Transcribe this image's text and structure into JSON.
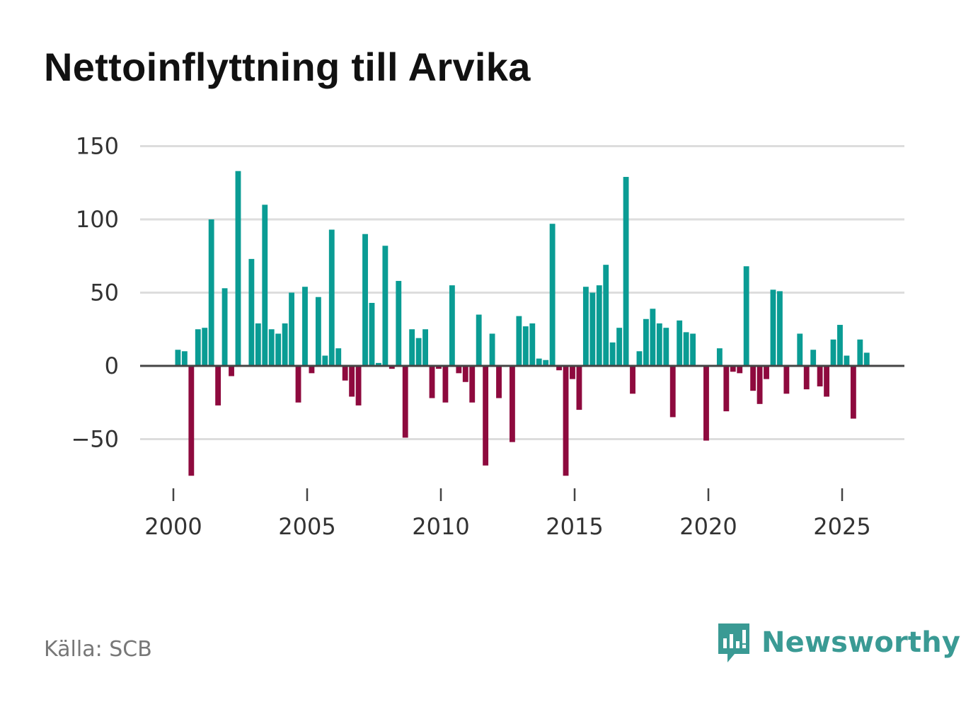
{
  "title": "Nettoinflyttning till Arvika",
  "source": "Källa: SCB",
  "brand": "Newsworthy",
  "colors": {
    "positive": "#0a9c94",
    "negative": "#8e0a3e",
    "grid": "#dddddd",
    "zero": "#444444",
    "brand": "#3a9a94"
  },
  "chart_data": {
    "type": "bar",
    "title": "Nettoinflyttning till Arvika",
    "xlabel": "",
    "ylabel": "",
    "ylim": [
      -75,
      150
    ],
    "xlim": [
      1999.6,
      2027.3
    ],
    "yticks": [
      150,
      100,
      50,
      0,
      -50
    ],
    "ytick_labels": [
      "150",
      "100",
      "50",
      "0",
      "−50"
    ],
    "xticks": [
      2000,
      2005,
      2010,
      2015,
      2020,
      2025
    ],
    "xtick_labels": [
      "2000",
      "2005",
      "2010",
      "2015",
      "2020",
      "2025"
    ],
    "bar_step": 0.25,
    "start": 2000.17,
    "values": [
      11,
      10,
      -75,
      25,
      26,
      100,
      -27,
      53,
      -7,
      133,
      0,
      73,
      29,
      110,
      25,
      22,
      29,
      50,
      -25,
      54,
      -5,
      47,
      7,
      93,
      12,
      -10,
      -21,
      -27,
      90,
      43,
      2,
      82,
      -2,
      58,
      -49,
      25,
      19,
      25,
      -22,
      -2,
      -25,
      55,
      -5,
      -11,
      -25,
      35,
      -68,
      22,
      -22,
      0,
      -52,
      34,
      27,
      29,
      5,
      4,
      97,
      -3,
      -75,
      -9,
      -30,
      54,
      50,
      55,
      69,
      16,
      26,
      129,
      -19,
      10,
      32,
      39,
      29,
      26,
      -35,
      31,
      23,
      22,
      0,
      -51,
      0,
      12,
      -31,
      -4,
      -5,
      68,
      -17,
      -26,
      -9,
      52,
      51,
      -19,
      0,
      22,
      -16,
      11,
      -14,
      -21,
      18,
      28,
      7,
      -36,
      18,
      9
    ]
  }
}
